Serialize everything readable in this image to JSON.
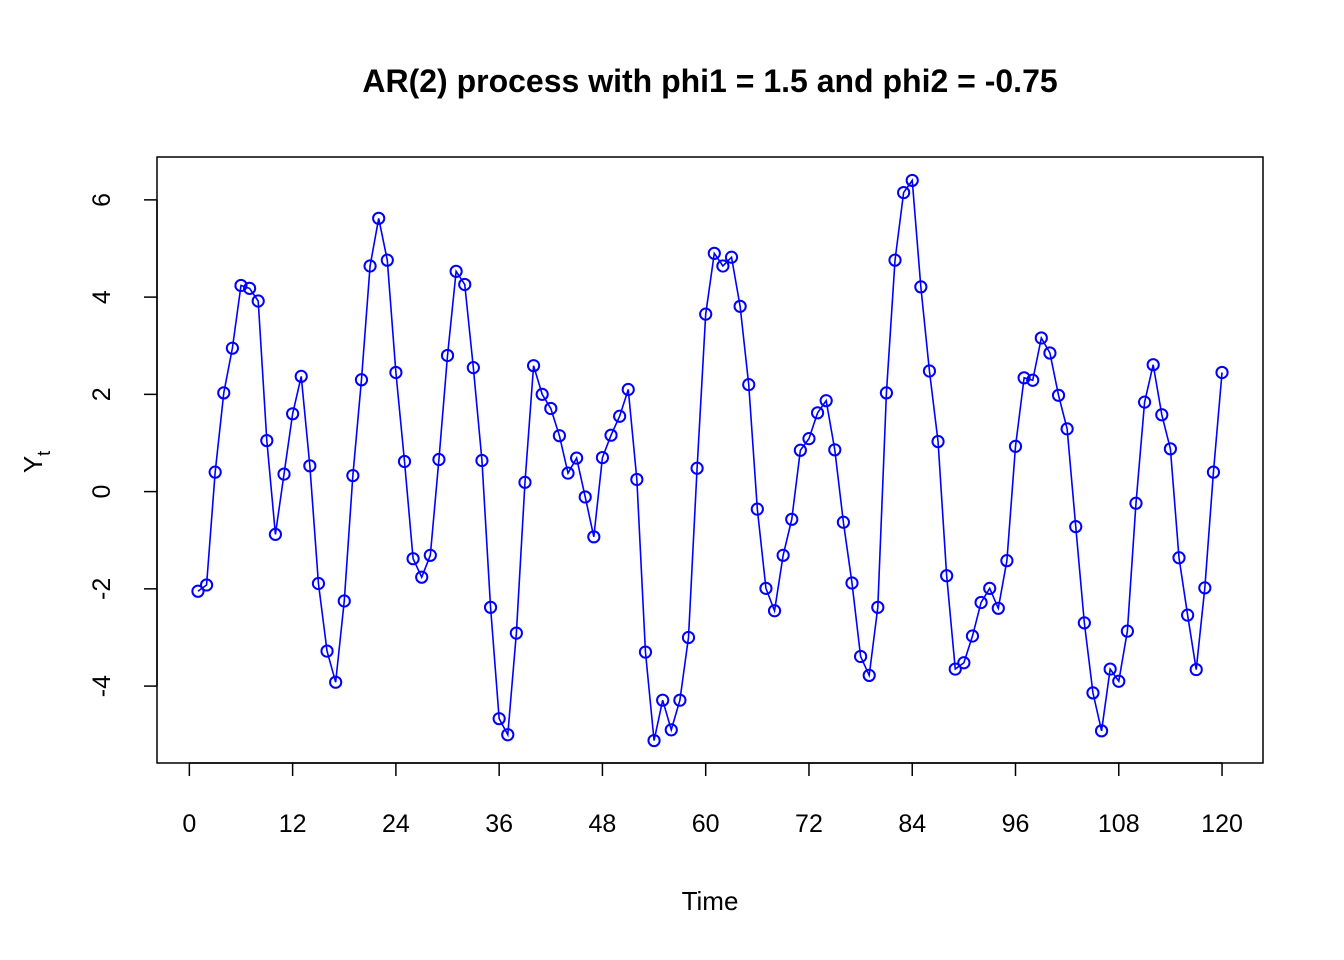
{
  "chart_data": {
    "type": "line",
    "title": "AR(2) process with phi1 = 1.5 and phi2 = -0.75",
    "xlabel": "Time",
    "ylabel": "Y",
    "ylabel_subscript": "t",
    "xlim": [
      1,
      120
    ],
    "ylim": [
      -5.12,
      6.42
    ],
    "x_ticks": [
      0,
      12,
      24,
      36,
      48,
      60,
      72,
      84,
      96,
      108,
      120
    ],
    "x_tick_labels": [
      "0",
      "12",
      "24",
      "36",
      "48",
      "60",
      "72",
      "84",
      "96",
      "108",
      "120"
    ],
    "y_ticks": [
      -4,
      -2,
      0,
      2,
      4,
      6
    ],
    "y_tick_labels": [
      "-4",
      "-2",
      "0",
      "2",
      "4",
      "6"
    ],
    "grid": false,
    "color": "#0000FF",
    "marker": "open-circle",
    "series": [
      {
        "x": [
          1,
          2,
          3,
          4,
          5,
          6,
          7,
          8,
          9,
          10,
          11,
          12,
          13,
          14,
          15,
          16,
          17,
          18,
          19,
          20,
          21,
          22,
          23,
          24,
          25,
          26,
          27,
          28,
          29,
          30,
          31,
          32,
          33,
          34,
          35,
          36,
          37,
          38,
          39,
          40,
          41,
          42,
          43,
          44,
          45,
          46,
          47,
          48,
          49,
          50,
          51,
          52,
          53,
          54,
          55,
          56,
          57,
          58,
          59,
          60,
          61,
          62,
          63,
          64,
          65,
          66,
          67,
          68,
          69,
          70,
          71,
          72,
          73,
          74,
          75,
          76,
          77,
          78,
          79,
          80,
          81,
          82,
          83,
          84,
          85,
          86,
          87,
          88,
          89,
          90,
          91,
          92,
          93,
          94,
          95,
          96,
          97,
          98,
          99,
          100,
          101,
          102,
          103,
          104,
          105,
          106,
          107,
          108,
          109,
          110,
          111,
          112,
          113,
          114,
          115,
          116,
          117,
          118,
          119,
          120
        ],
        "values": [
          -2.05,
          -1.92,
          0.4,
          2.03,
          2.95,
          4.24,
          4.18,
          3.92,
          1.05,
          -0.88,
          0.36,
          1.6,
          2.37,
          0.53,
          -1.89,
          -3.28,
          -3.92,
          -2.25,
          0.33,
          2.3,
          4.64,
          5.62,
          4.76,
          2.45,
          0.62,
          -1.38,
          -1.76,
          -1.31,
          0.66,
          2.8,
          4.53,
          4.26,
          2.55,
          0.64,
          -2.38,
          -4.67,
          -5.0,
          -2.91,
          0.19,
          2.59,
          2.0,
          1.71,
          1.15,
          0.38,
          0.69,
          -0.11,
          -0.93,
          0.7,
          1.16,
          1.55,
          2.1,
          0.25,
          -3.3,
          -5.12,
          -4.29,
          -4.9,
          -4.29,
          -3.0,
          0.48,
          3.65,
          4.9,
          4.64,
          4.82,
          3.81,
          2.2,
          -0.36,
          -1.99,
          -2.45,
          -1.31,
          -0.57,
          0.85,
          1.09,
          1.62,
          1.87,
          0.86,
          -0.63,
          -1.88,
          -3.39,
          -3.78,
          -2.38,
          2.03,
          4.76,
          6.15,
          6.4,
          4.21,
          2.48,
          1.03,
          -1.73,
          -3.65,
          -3.52,
          -2.97,
          -2.28,
          -1.99,
          -2.4,
          -1.42,
          0.93,
          2.34,
          2.29,
          3.16,
          2.85,
          1.98,
          1.29,
          -0.72,
          -2.7,
          -4.14,
          -4.92,
          -3.65,
          -3.9,
          -2.87,
          -0.24,
          1.84,
          2.61,
          1.58,
          0.88,
          -1.36,
          -2.54,
          -3.66,
          -1.98,
          0.4,
          2.45
        ]
      }
    ]
  }
}
